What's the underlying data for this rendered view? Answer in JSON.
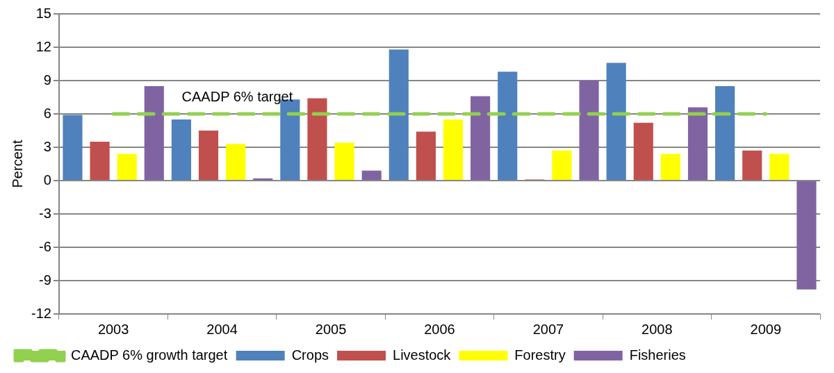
{
  "chart_data": {
    "type": "bar",
    "ylabel": "Percent",
    "categories": [
      "2003",
      "2004",
      "2005",
      "2006",
      "2007",
      "2008",
      "2009"
    ],
    "series": [
      {
        "name": "Crops",
        "color": "#4f81bd",
        "values": [
          5.9,
          5.5,
          7.3,
          11.8,
          9.8,
          10.6,
          8.5
        ]
      },
      {
        "name": "Livestock",
        "color": "#c0504d",
        "values": [
          3.5,
          4.5,
          7.4,
          4.4,
          0.1,
          5.2,
          2.7
        ]
      },
      {
        "name": "Forestry",
        "color": "#ffff00",
        "values": [
          2.4,
          3.3,
          3.4,
          5.5,
          2.7,
          2.4,
          2.4
        ]
      },
      {
        "name": "Fisheries",
        "color": "#8064a2",
        "values": [
          8.5,
          0.2,
          0.9,
          7.6,
          9.0,
          6.6,
          -9.8
        ]
      },
      {
        "name": "CAADP 6% growth target",
        "type": "line",
        "color": "#92d050",
        "line_style": "dashed",
        "marker": "none",
        "values": [
          6,
          6,
          6,
          6,
          6,
          6,
          6
        ]
      }
    ],
    "annotations": [
      {
        "text": "CAADP 6% target",
        "x": "2004",
        "y": 6
      }
    ],
    "ylim": [
      -12,
      15
    ],
    "yticks": [
      -12,
      -9,
      -6,
      -3,
      0,
      3,
      6,
      9,
      12,
      15
    ],
    "grid": "y",
    "legend": "bottom"
  }
}
